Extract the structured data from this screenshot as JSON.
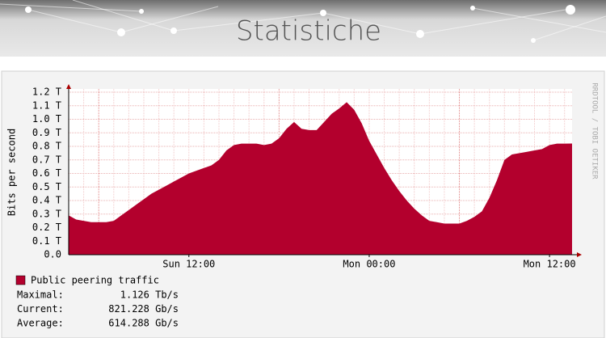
{
  "header": {
    "title": "Statistiche"
  },
  "chart_data": {
    "type": "area",
    "y_label": "Bits per second",
    "side_label": "RRDTOOL / TOBI OETIKER",
    "x": [
      "Sun 04:00",
      "Sun 04:30",
      "Sun 05:00",
      "Sun 05:30",
      "Sun 06:00",
      "Sun 06:30",
      "Sun 07:00",
      "Sun 07:30",
      "Sun 08:00",
      "Sun 08:30",
      "Sun 09:00",
      "Sun 09:30",
      "Sun 10:00",
      "Sun 10:30",
      "Sun 11:00",
      "Sun 11:30",
      "Sun 12:00",
      "Sun 12:30",
      "Sun 13:00",
      "Sun 13:30",
      "Sun 14:00",
      "Sun 14:30",
      "Sun 15:00",
      "Sun 15:30",
      "Sun 16:00",
      "Sun 16:30",
      "Sun 17:00",
      "Sun 17:30",
      "Sun 18:00",
      "Sun 18:30",
      "Sun 19:00",
      "Sun 19:30",
      "Sun 20:00",
      "Sun 20:30",
      "Sun 21:00",
      "Sun 21:30",
      "Sun 22:00",
      "Sun 22:30",
      "Sun 23:00",
      "Sun 23:30",
      "Mon 00:00",
      "Mon 00:30",
      "Mon 01:00",
      "Mon 01:30",
      "Mon 02:00",
      "Mon 02:30",
      "Mon 03:00",
      "Mon 03:30",
      "Mon 04:00",
      "Mon 04:30",
      "Mon 05:00",
      "Mon 05:30",
      "Mon 06:00",
      "Mon 06:30",
      "Mon 07:00",
      "Mon 07:30",
      "Mon 08:00",
      "Mon 08:30",
      "Mon 09:00",
      "Mon 09:30",
      "Mon 10:00",
      "Mon 10:30",
      "Mon 11:00",
      "Mon 11:30",
      "Mon 12:00",
      "Mon 12:30",
      "Mon 13:00",
      "Mon 13:30"
    ],
    "series": [
      {
        "name": "Public peering traffic",
        "color": "#b3002d",
        "values": [
          0.29,
          0.26,
          0.25,
          0.24,
          0.24,
          0.24,
          0.25,
          0.29,
          0.33,
          0.37,
          0.41,
          0.45,
          0.48,
          0.51,
          0.54,
          0.57,
          0.6,
          0.62,
          0.64,
          0.66,
          0.7,
          0.77,
          0.81,
          0.82,
          0.82,
          0.82,
          0.81,
          0.82,
          0.86,
          0.93,
          0.98,
          0.93,
          0.92,
          0.92,
          0.98,
          1.04,
          1.08,
          1.126,
          1.07,
          0.97,
          0.84,
          0.74,
          0.64,
          0.55,
          0.47,
          0.4,
          0.34,
          0.29,
          0.25,
          0.24,
          0.23,
          0.23,
          0.23,
          0.25,
          0.28,
          0.32,
          0.42,
          0.55,
          0.7,
          0.74,
          0.75,
          0.76,
          0.77,
          0.78,
          0.81,
          0.82,
          0.82,
          0.821
        ]
      }
    ],
    "xticks": [
      "Sun 12:00",
      "Mon 00:00",
      "Mon 12:00"
    ],
    "ylim": [
      0,
      1.2
    ],
    "yticks": [
      {
        "value": 0,
        "label": "0.0"
      },
      {
        "value": 0.1,
        "label": "0.1 T"
      },
      {
        "value": 0.2,
        "label": "0.2 T"
      },
      {
        "value": 0.3,
        "label": "0.3 T"
      },
      {
        "value": 0.4,
        "label": "0.4 T"
      },
      {
        "value": 0.5,
        "label": "0.5 T"
      },
      {
        "value": 0.6,
        "label": "0.6 T"
      },
      {
        "value": 0.7,
        "label": "0.7 T"
      },
      {
        "value": 0.8,
        "label": "0.8 T"
      },
      {
        "value": 0.9,
        "label": "0.9 T"
      },
      {
        "value": 1.0,
        "label": "1.0 T"
      },
      {
        "value": 1.1,
        "label": "1.1 T"
      },
      {
        "value": 1.2,
        "label": "1.2 T"
      }
    ],
    "grid": true,
    "stats": [
      {
        "label": "Maximal:",
        "value": "1.126 Tb/s"
      },
      {
        "label": "Current:",
        "value": "821.228 Gb/s"
      },
      {
        "label": "Average:",
        "value": "614.288 Gb/s"
      }
    ]
  }
}
